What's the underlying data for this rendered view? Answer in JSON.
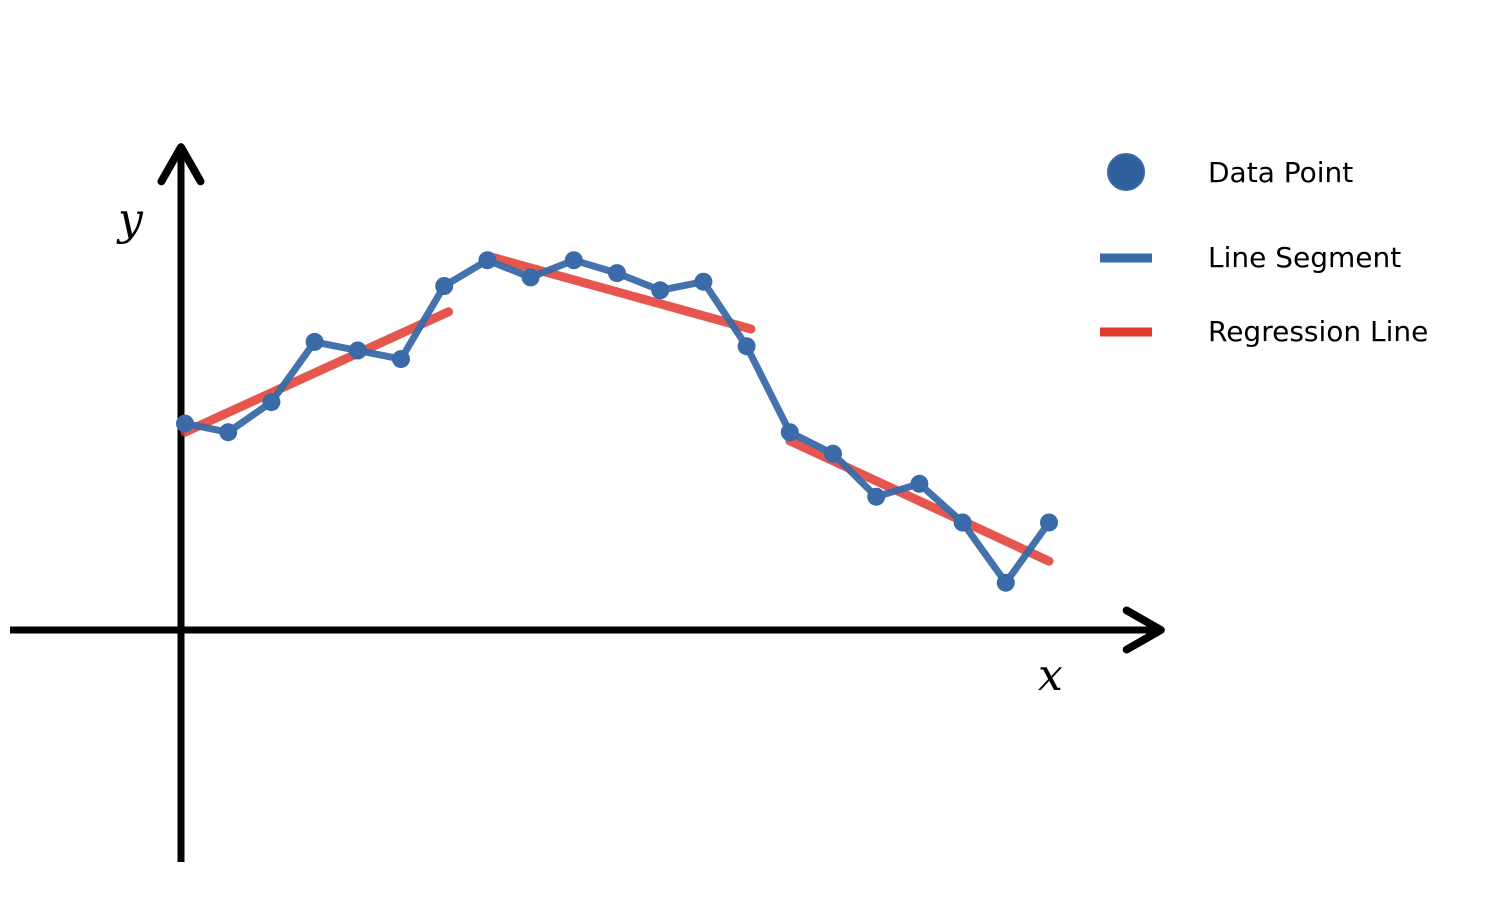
{
  "chart_data": {
    "type": "line",
    "xlabel": "x",
    "ylabel": "y",
    "axis_arrows": true,
    "ticks": false,
    "grid": false,
    "legend_position": "top-right",
    "legend": [
      {
        "label": "Data Point",
        "kind": "marker",
        "color": "#3a6aa8"
      },
      {
        "label": "Line Segment",
        "kind": "line",
        "color": "#3a6aa8"
      },
      {
        "label": "Regression Line",
        "kind": "line",
        "color": "#e03a2f"
      }
    ],
    "series": [
      {
        "kind": "data",
        "x": [
          0,
          1,
          2,
          3,
          4,
          5,
          6,
          7,
          8,
          9,
          10,
          11,
          12,
          13,
          14,
          15,
          16,
          17,
          18,
          19,
          20
        ],
        "y": [
          4.8,
          4.6,
          5.3,
          6.7,
          6.5,
          6.3,
          8.0,
          8.6,
          8.2,
          8.6,
          8.3,
          7.9,
          8.1,
          6.6,
          4.6,
          4.1,
          3.1,
          3.4,
          2.5,
          1.1,
          2.5
        ]
      }
    ],
    "regression_lines": [
      {
        "x": [
          0,
          6.1
        ],
        "y": [
          4.6,
          7.4
        ]
      },
      {
        "x": [
          7.0,
          13.1
        ],
        "y": [
          8.7,
          7.0
        ]
      },
      {
        "x": [
          14.0,
          20.0
        ],
        "y": [
          4.4,
          1.6
        ]
      }
    ],
    "colors": {
      "data": "#3a6aa8",
      "regression": "#e03a2f",
      "axis": "#000000"
    }
  }
}
